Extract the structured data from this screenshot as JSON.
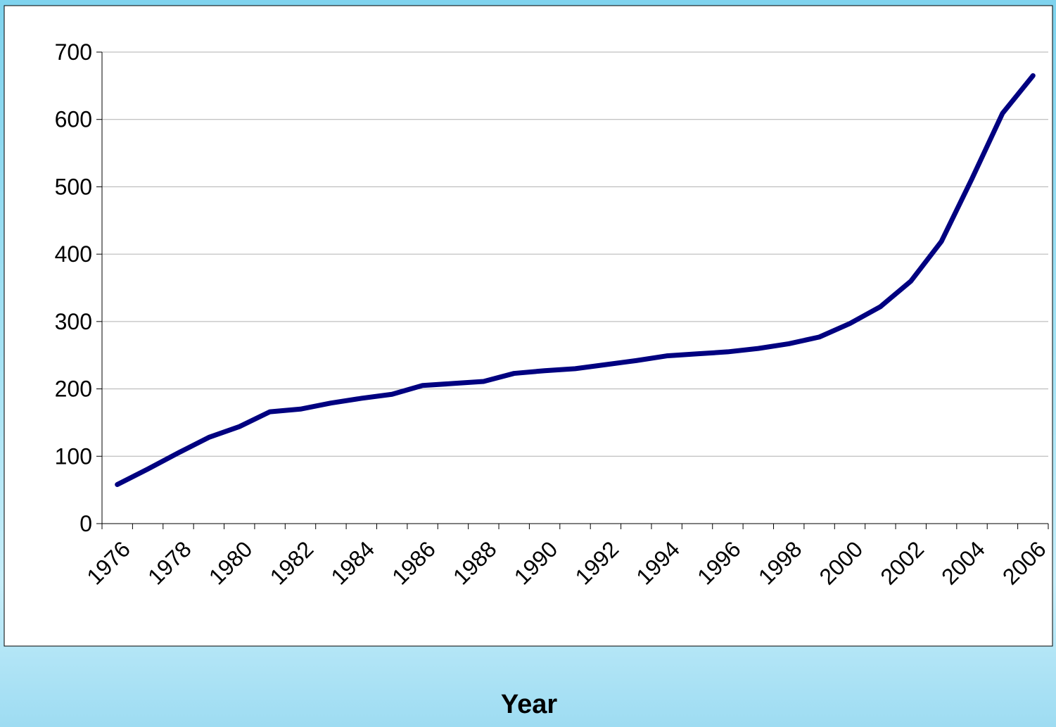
{
  "chart_data": {
    "type": "line",
    "x_label": "Year",
    "categories": [
      "1976",
      null,
      "1978",
      null,
      "1980",
      null,
      "1982",
      null,
      "1984",
      null,
      "1986",
      null,
      "1988",
      null,
      "1990",
      null,
      "1992",
      null,
      "1994",
      null,
      "1996",
      null,
      "1998",
      null,
      "2000",
      null,
      "2002",
      null,
      "2004",
      null,
      "2006"
    ],
    "values": [
      58,
      81,
      105,
      128,
      144,
      166,
      170,
      179,
      186,
      192,
      205,
      208,
      211,
      223,
      227,
      230,
      236,
      242,
      249,
      252,
      255,
      260,
      267,
      277,
      297,
      322,
      360,
      419,
      512,
      609,
      665
    ],
    "color": "#000080",
    "ylim": [
      0,
      700
    ],
    "yticks": [
      0,
      100,
      200,
      300,
      400,
      500,
      600,
      700
    ],
    "grid": true
  }
}
